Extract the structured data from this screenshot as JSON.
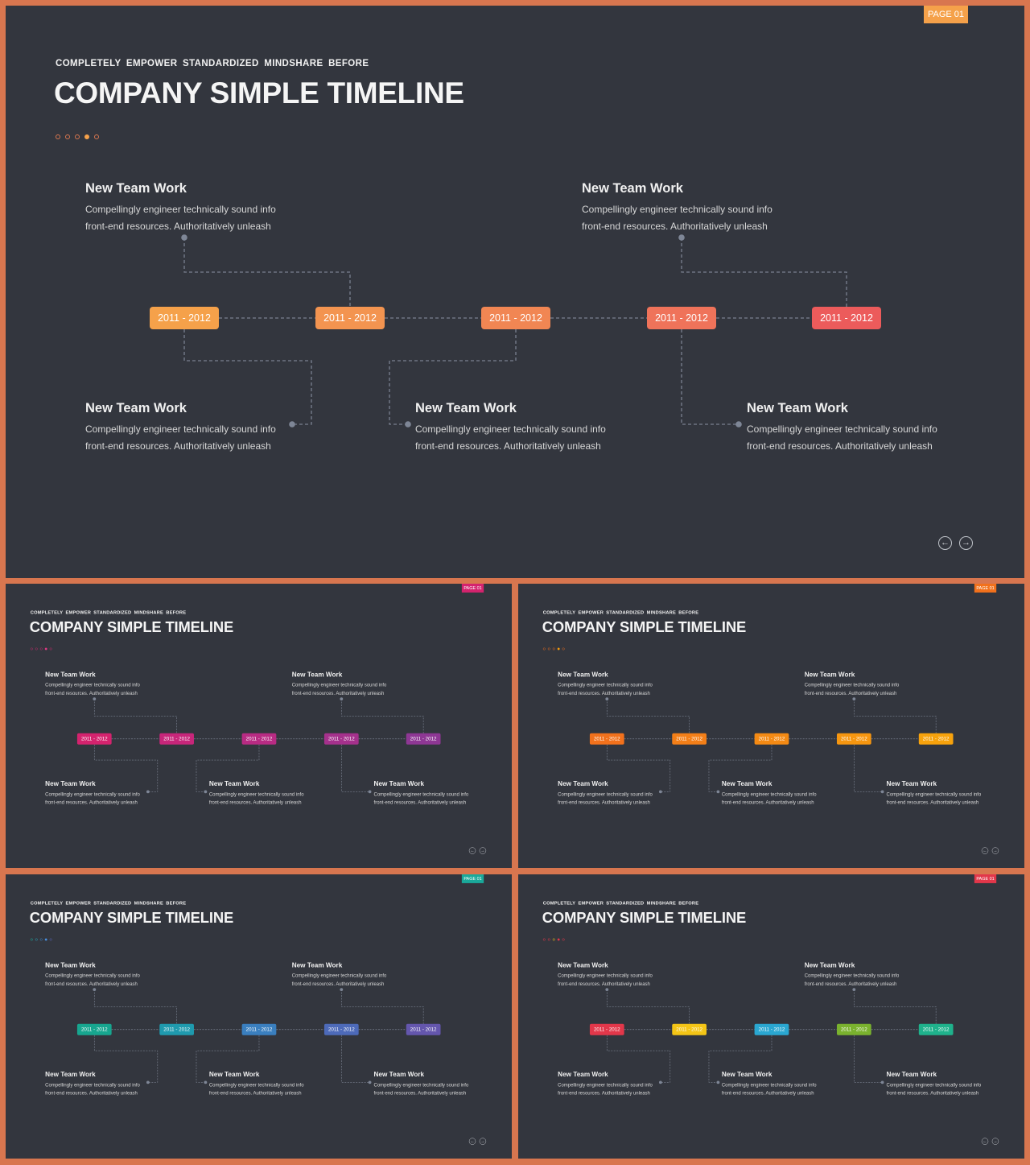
{
  "slides": [
    {
      "id": "main",
      "page_label": "PAGE 01",
      "badge_color": "#f5a14a",
      "subtitle": "COMPLETELY EMPOWER STANDARDIZED MINDSHARE BEFORE",
      "title": "COMPANY SIMPLE TIMELINE",
      "dot_colors": [
        "#d8764f",
        "#d8764f",
        "#d8764f",
        "#f5a14a",
        "#d8764f"
      ],
      "pills": [
        {
          "label": "2011 - 2012",
          "color": "#f5a14a"
        },
        {
          "label": "2011 - 2012",
          "color": "#f39450"
        },
        {
          "label": "2011 - 2012",
          "color": "#f18653"
        },
        {
          "label": "2011 - 2012",
          "color": "#ef735a"
        },
        {
          "label": "2011 - 2012",
          "color": "#ec5b5b"
        }
      ]
    },
    {
      "id": "tl",
      "page_label": "PAGE 01",
      "badge_color": "#d4236e",
      "subtitle": "COMPLETELY EMPOWER STANDARDIZED MINDSHARE BEFORE",
      "title": "COMPANY SIMPLE TIMELINE",
      "dot_colors": [
        "#c02a6a",
        "#c02a6a",
        "#c02a6a",
        "#e23a86",
        "#c02a6a"
      ],
      "pills": [
        {
          "label": "2011 - 2012",
          "color": "#d4236e"
        },
        {
          "label": "2011 - 2012",
          "color": "#c7267a"
        },
        {
          "label": "2011 - 2012",
          "color": "#b82b83"
        },
        {
          "label": "2011 - 2012",
          "color": "#a5318c"
        },
        {
          "label": "2011 - 2012",
          "color": "#8e3794"
        }
      ]
    },
    {
      "id": "tr",
      "page_label": "PAGE 01",
      "badge_color": "#f2711c",
      "subtitle": "COMPLETELY EMPOWER STANDARDIZED MINDSHARE BEFORE",
      "title": "COMPANY SIMPLE TIMELINE",
      "dot_colors": [
        "#e0691f",
        "#e0691f",
        "#e0691f",
        "#f59c0d",
        "#e0691f"
      ],
      "pills": [
        {
          "label": "2011 - 2012",
          "color": "#f2711c"
        },
        {
          "label": "2011 - 2012",
          "color": "#f37f18"
        },
        {
          "label": "2011 - 2012",
          "color": "#f48a14"
        },
        {
          "label": "2011 - 2012",
          "color": "#f69610"
        },
        {
          "label": "2011 - 2012",
          "color": "#f7a20c"
        }
      ]
    },
    {
      "id": "bl",
      "page_label": "PAGE 01",
      "badge_color": "#1aa99a",
      "subtitle": "COMPLETELY EMPOWER STANDARDIZED MINDSHARE BEFORE",
      "title": "COMPANY SIMPLE TIMELINE",
      "dot_colors": [
        "#1aa99a",
        "#2a9fb8",
        "#3a7fc0",
        "#4a90e0",
        "#5660b0"
      ],
      "pills": [
        {
          "label": "2011 - 2012",
          "color": "#17a68f"
        },
        {
          "label": "2011 - 2012",
          "color": "#1f9aae"
        },
        {
          "label": "2011 - 2012",
          "color": "#3a7fbf"
        },
        {
          "label": "2011 - 2012",
          "color": "#4d6ab9"
        },
        {
          "label": "2011 - 2012",
          "color": "#6456ad"
        }
      ]
    },
    {
      "id": "br",
      "page_label": "PAGE 01",
      "badge_color": "#e2374a",
      "subtitle": "COMPLETELY EMPOWER STANDARDIZED MINDSHARE BEFORE",
      "title": "COMPANY SIMPLE TIMELINE",
      "dot_colors": [
        "#e2374a",
        "#e2374a",
        "#f2c21a",
        "#e2374a",
        "#e2374a"
      ],
      "pills": [
        {
          "label": "2011 - 2012",
          "color": "#e2374a"
        },
        {
          "label": "2011 - 2012",
          "color": "#f4c516"
        },
        {
          "label": "2011 - 2012",
          "color": "#2aa7d1"
        },
        {
          "label": "2011 - 2012",
          "color": "#7ab22e"
        },
        {
          "label": "2011 - 2012",
          "color": "#1fb28c"
        }
      ]
    }
  ],
  "entry": {
    "heading": "New Team Work",
    "line1": "Compellingly engineer technically sound info",
    "line2": "front-end resources. Authoritatively unleash"
  },
  "line_color": "#7a8190",
  "icons": {
    "prev": "arrow-left-circle-icon",
    "next": "arrow-right-circle-icon"
  }
}
